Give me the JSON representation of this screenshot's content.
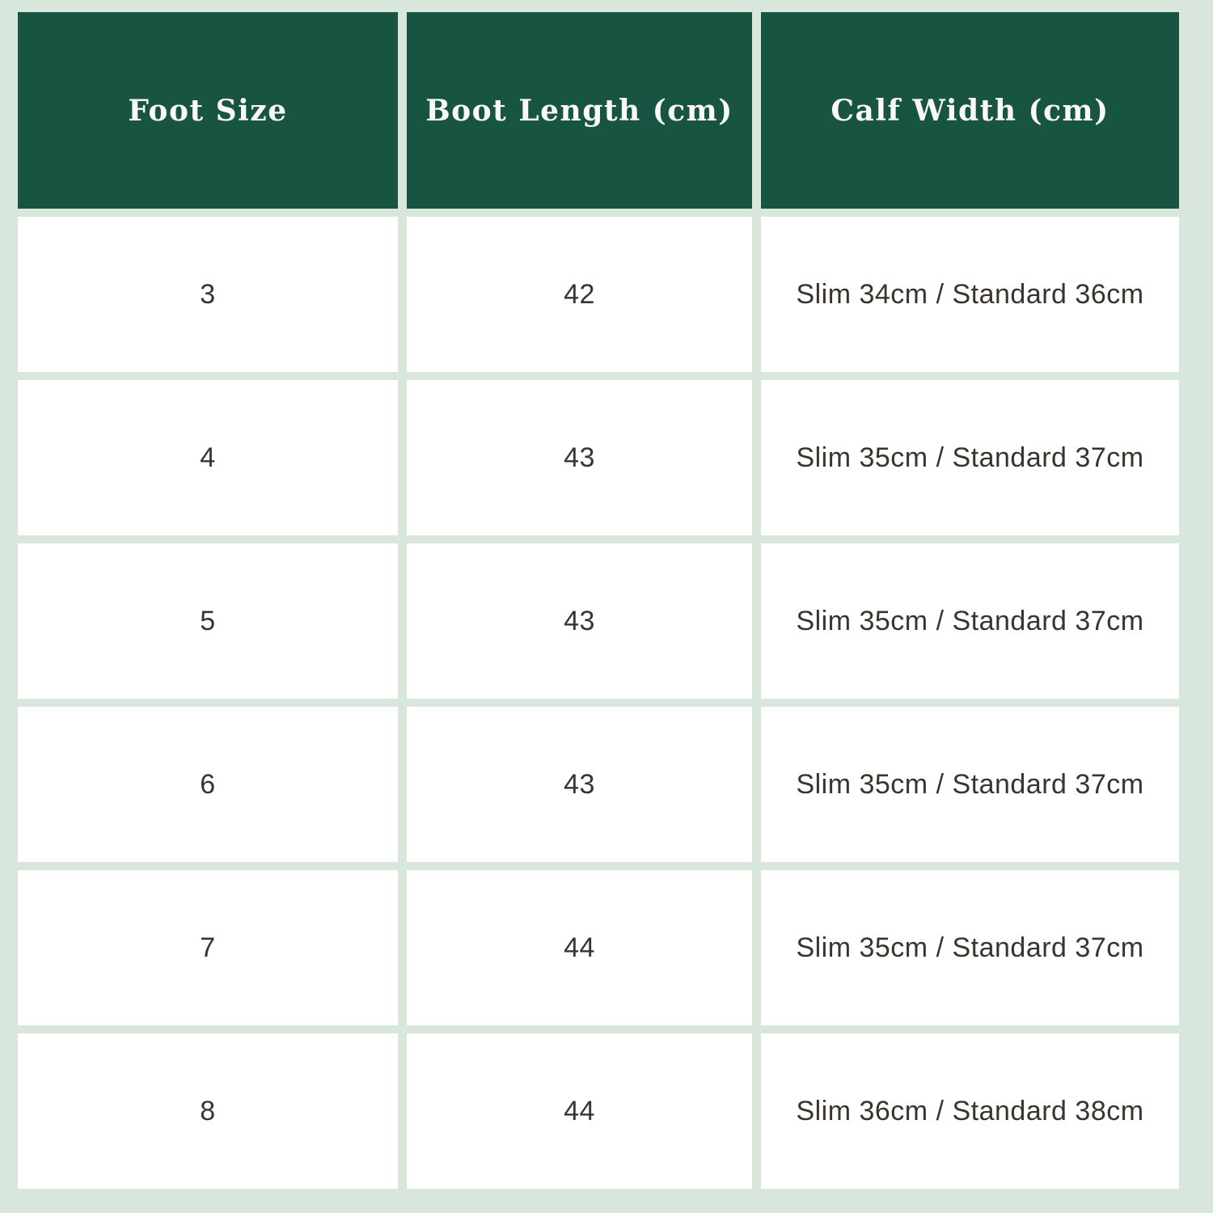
{
  "page": {
    "background_color": "#D8E6DB"
  },
  "table": {
    "title": "boot-size-chart",
    "header": {
      "bg_color": "#175441",
      "text_color": "#FBF9F3",
      "columns": [
        {
          "id": "foot-size",
          "label": "Foot Size"
        },
        {
          "id": "boot-length",
          "label": "Boot Length (cm)"
        },
        {
          "id": "calf-width",
          "label": "Calf Width (cm)"
        }
      ]
    },
    "body": {
      "cell_bg_color": "#FFFFFF",
      "text_color": "#3A342E",
      "rows": [
        {
          "foot_size": "3",
          "boot_length": "42",
          "calf_width": "Slim 34cm / Standard 36cm"
        },
        {
          "foot_size": "4",
          "boot_length": "43",
          "calf_width": "Slim 35cm / Standard 37cm"
        },
        {
          "foot_size": "5",
          "boot_length": "43",
          "calf_width": "Slim 35cm / Standard 37cm"
        },
        {
          "foot_size": "6",
          "boot_length": "43",
          "calf_width": "Slim 35cm / Standard 37cm"
        },
        {
          "foot_size": "7",
          "boot_length": "44",
          "calf_width": "Slim 35cm / Standard 37cm"
        },
        {
          "foot_size": "8",
          "boot_length": "44",
          "calf_width": "Slim 36cm / Standard 38cm"
        }
      ]
    }
  }
}
